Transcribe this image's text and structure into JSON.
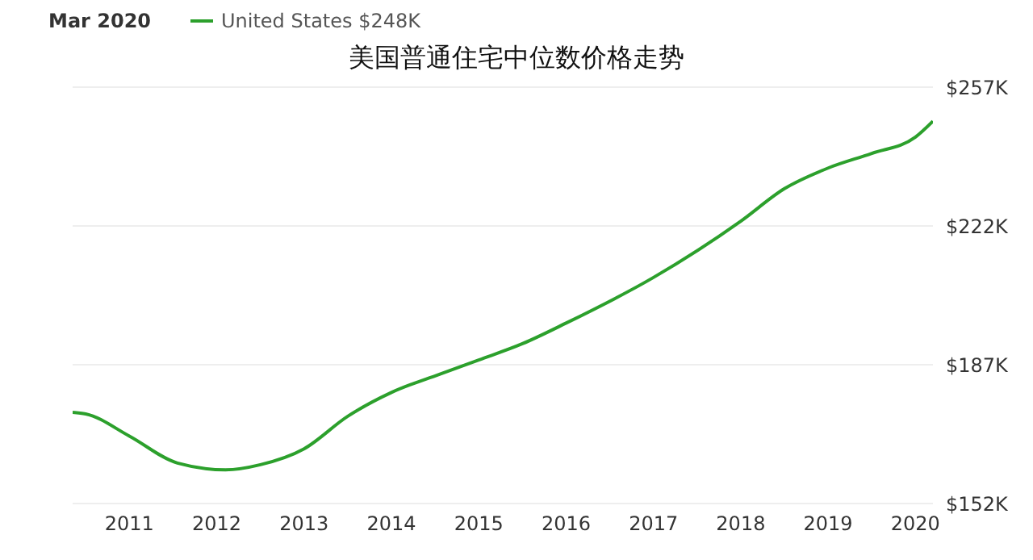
{
  "chart_data": {
    "type": "line",
    "title": "美国普通住宅中位数价格走势",
    "annotations": [
      "Mar 2020"
    ],
    "x": [
      2010.35,
      2010.5,
      2011,
      2011.55,
      2012.1,
      2012.5,
      2013,
      2013.5,
      2014,
      2014.55,
      2015,
      2015.5,
      2016,
      2017,
      2018,
      2018.5,
      2019,
      2019.5,
      2020,
      2020.2
    ],
    "series": [
      {
        "name": "United States $248K",
        "color": "#2ca02c",
        "values": [
          175,
          174.6,
          169,
          162.2,
          160.5,
          161.8,
          165.8,
          174,
          180,
          184.6,
          188.2,
          192.3,
          197.5,
          209,
          223.2,
          231.4,
          236.6,
          240.3,
          244.4,
          248.4
        ]
      }
    ],
    "xlim": [
      2010.35,
      2020.2
    ],
    "xticks": [
      2011,
      2012,
      2013,
      2014,
      2015,
      2016,
      2017,
      2018,
      2019,
      2020
    ],
    "ylim": [
      152,
      257
    ],
    "yticks": [
      {
        "value": 152,
        "label": "$152K"
      },
      {
        "value": 187,
        "label": "$187K"
      },
      {
        "value": 222,
        "label": "$222K"
      },
      {
        "value": 257,
        "label": "$257K"
      }
    ],
    "grid": "y",
    "legend": "top left",
    "marker": "none",
    "line_style": "solid"
  }
}
